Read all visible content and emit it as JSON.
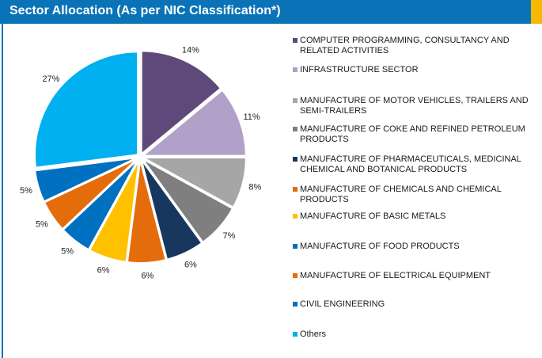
{
  "header": {
    "title": "Sector Allocation (As per NIC Classification*)"
  },
  "colors": {
    "header_bg": "#0a73b8",
    "header_accent": "#f6b800"
  },
  "chart_data": {
    "type": "pie",
    "title": "Sector Allocation (As per NIC Classification*)",
    "legend_position": "right",
    "slices": [
      {
        "name": "COMPUTER PROGRAMMING, CONSULTANCY AND RELATED ACTIVITIES",
        "value": 14,
        "label": "14%",
        "color": "#5f497a"
      },
      {
        "name": "INFRASTRUCTURE SECTOR",
        "value": 11,
        "label": "11%",
        "color": "#b1a0c7"
      },
      {
        "name": "MANUFACTURE OF MOTOR VEHICLES, TRAILERS AND SEMI-TRAILERS",
        "value": 8,
        "label": "8%",
        "color": "#a6a6a6"
      },
      {
        "name": "MANUFACTURE OF COKE AND REFINED PETROLEUM PRODUCTS",
        "value": 7,
        "label": "7%",
        "color": "#7f7f7f"
      },
      {
        "name": "MANUFACTURE OF PHARMACEUTICALS, MEDICINAL CHEMICAL AND BOTANICAL PRODUCTS",
        "value": 6,
        "label": "6%",
        "color": "#17375e"
      },
      {
        "name": "MANUFACTURE OF CHEMICALS AND CHEMICAL PRODUCTS",
        "value": 6,
        "label": "6%",
        "color": "#e46c0a"
      },
      {
        "name": "MANUFACTURE OF BASIC METALS",
        "value": 6,
        "label": "6%",
        "color": "#ffc000"
      },
      {
        "name": "MANUFACTURE OF FOOD PRODUCTS",
        "value": 5,
        "label": "5%",
        "color": "#0070c0"
      },
      {
        "name": "MANUFACTURE OF ELECTRICAL EQUIPMENT",
        "value": 5,
        "label": "5%",
        "color": "#e46c0a"
      },
      {
        "name": "CIVIL ENGINEERING",
        "value": 5,
        "label": "5%",
        "color": "#0070c0"
      },
      {
        "name": "Others",
        "value": 27,
        "label": "27%",
        "color": "#00b0f0"
      }
    ]
  }
}
